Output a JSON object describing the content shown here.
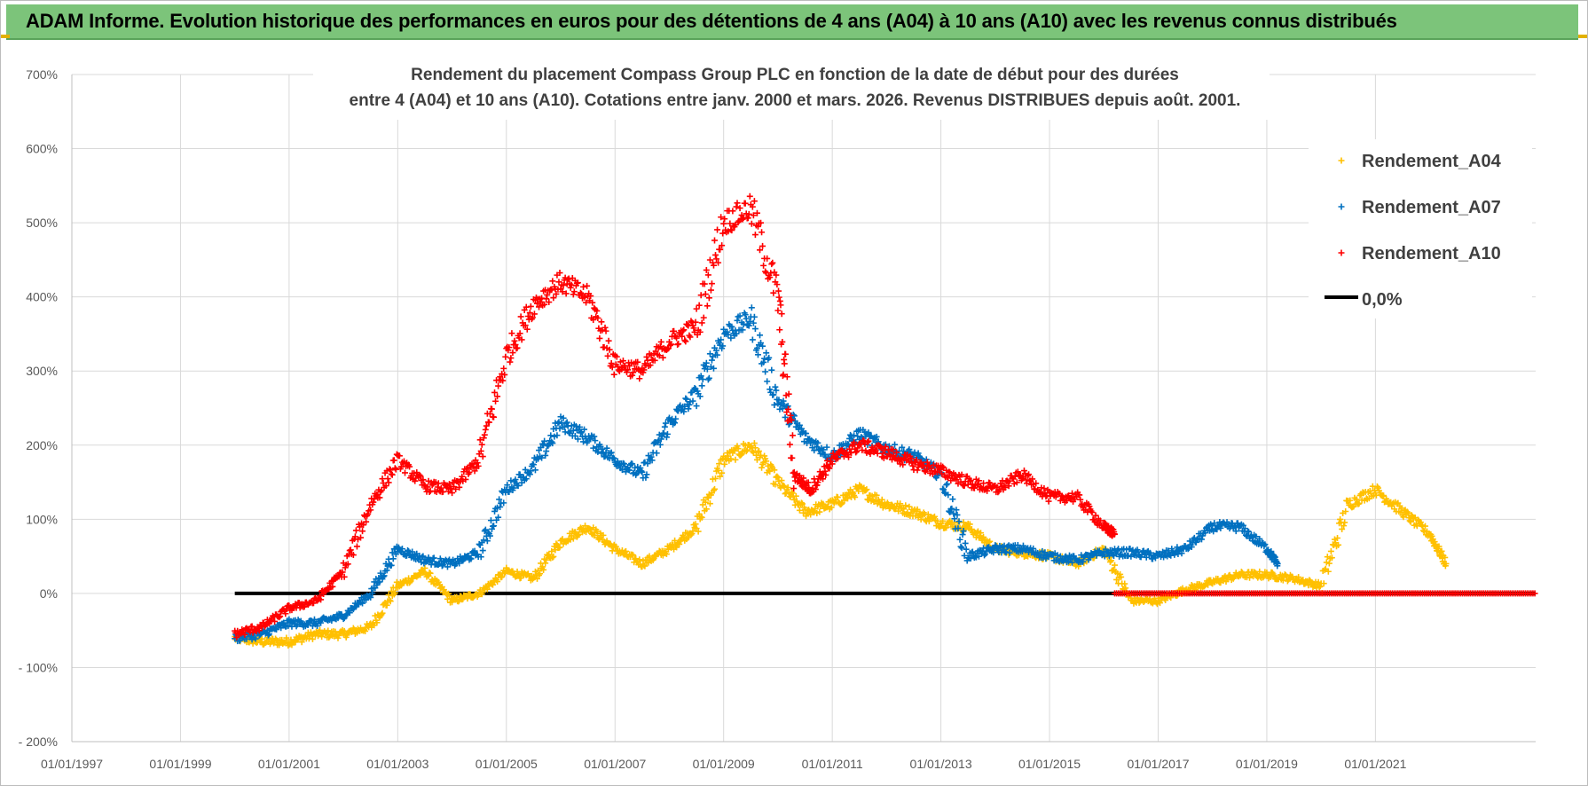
{
  "banner": {
    "title": "ADAM Informe. Evolution historique des performances en euros pour des détentions de 4 ans (A04) à 10 ans (A10) avec les revenus connus distribués"
  },
  "colors": {
    "banner_bg": "#7cc47a",
    "a04": "#ffc000",
    "a07": "#0070c0",
    "a10": "#ff0000",
    "zero": "#000000",
    "grid": "#d9d9d9"
  },
  "chart_data": {
    "type": "scatter",
    "title_lines": [
      "Rendement du placement Compass Group PLC en fonction de la date de début pour des durées",
      "entre 4 (A04) et 10 ans (A10). Cotations entre janv. 2000 et mars. 2026. Revenus DISTRIBUES depuis août. 2001."
    ],
    "xlabel": "",
    "ylabel": "",
    "x_range": [
      1997.0,
      2023.95
    ],
    "ylim": [
      -200,
      700
    ],
    "y_ticks": [
      700,
      600,
      500,
      400,
      300,
      200,
      100,
      0,
      -100,
      -200
    ],
    "y_tick_labels": [
      "700%",
      "600%",
      "500%",
      "400%",
      "300%",
      "200%",
      "100%",
      "0%",
      "- 100%",
      "- 200%"
    ],
    "x_ticks": [
      1997,
      1999,
      2001,
      2003,
      2005,
      2007,
      2009,
      2011,
      2013,
      2015,
      2017,
      2019,
      2021
    ],
    "x_tick_labels": [
      "01/01/1997",
      "01/01/1999",
      "01/01/2001",
      "01/01/2003",
      "01/01/2005",
      "01/01/2007",
      "01/01/2009",
      "01/01/2011",
      "01/01/2013",
      "01/01/2015",
      "01/01/2017",
      "01/01/2019",
      "01/01/2021"
    ],
    "legend_position": "top-right",
    "series": [
      {
        "name": "Rendement_A04",
        "color": "#ffc000",
        "x": [
          2000.0,
          2000.5,
          2001.0,
          2001.5,
          2002.0,
          2002.5,
          2003.0,
          2003.5,
          2004.0,
          2004.5,
          2005.0,
          2005.5,
          2006.0,
          2006.5,
          2007.0,
          2007.5,
          2008.0,
          2008.5,
          2009.0,
          2009.5,
          2010.0,
          2010.5,
          2011.0,
          2011.5,
          2012.0,
          2012.5,
          2013.0,
          2013.5,
          2014.0,
          2014.5,
          2015.0,
          2015.5,
          2016.0,
          2016.5,
          2017.0,
          2017.5,
          2018.0,
          2018.5,
          2019.0,
          2019.5,
          2020.0,
          2020.5,
          2021.0,
          2021.5,
          2022.0,
          2022.3
        ],
        "y": [
          -60,
          -65,
          -65,
          -55,
          -55,
          -45,
          10,
          30,
          -10,
          0,
          30,
          20,
          70,
          90,
          60,
          40,
          60,
          90,
          180,
          200,
          150,
          110,
          120,
          140,
          120,
          110,
          95,
          90,
          60,
          55,
          50,
          40,
          60,
          -10,
          -10,
          5,
          15,
          25,
          25,
          20,
          10,
          120,
          140,
          110,
          80,
          40
        ]
      },
      {
        "name": "Rendement_A07",
        "color": "#0070c0",
        "x": [
          2000.0,
          2000.5,
          2001.0,
          2001.5,
          2002.0,
          2002.5,
          2003.0,
          2003.5,
          2004.0,
          2004.5,
          2005.0,
          2005.5,
          2006.0,
          2006.5,
          2007.0,
          2007.5,
          2008.0,
          2008.5,
          2009.0,
          2009.5,
          2010.0,
          2010.5,
          2011.0,
          2011.5,
          2012.0,
          2012.5,
          2013.0,
          2013.5,
          2014.0,
          2014.5,
          2015.0,
          2015.5,
          2016.0,
          2016.5,
          2017.0,
          2017.5,
          2018.0,
          2018.5,
          2019.0,
          2019.2
        ],
        "y": [
          -60,
          -55,
          -40,
          -40,
          -30,
          0,
          60,
          45,
          40,
          55,
          140,
          170,
          230,
          210,
          180,
          160,
          230,
          270,
          350,
          370,
          260,
          210,
          185,
          215,
          195,
          185,
          160,
          50,
          60,
          60,
          50,
          45,
          55,
          55,
          50,
          60,
          90,
          90,
          60,
          40
        ]
      },
      {
        "name": "Rendement_A10",
        "color": "#ff0000",
        "x": [
          2000.0,
          2000.5,
          2001.0,
          2001.5,
          2002.0,
          2002.5,
          2003.0,
          2003.5,
          2004.0,
          2004.5,
          2005.0,
          2005.5,
          2006.0,
          2006.5,
          2007.0,
          2007.5,
          2008.0,
          2008.5,
          2009.0,
          2009.5,
          2010.0,
          2010.3,
          2010.6,
          2011.0,
          2011.5,
          2012.0,
          2012.5,
          2013.0,
          2013.5,
          2014.0,
          2014.5,
          2015.0,
          2015.5,
          2016.0,
          2016.2
        ],
        "y": [
          -55,
          -45,
          -20,
          -10,
          30,
          120,
          180,
          145,
          140,
          180,
          320,
          390,
          420,
          400,
          310,
          300,
          340,
          360,
          500,
          520,
          400,
          160,
          140,
          180,
          200,
          190,
          175,
          165,
          150,
          140,
          160,
          130,
          130,
          90,
          80
        ]
      }
    ],
    "zero_line": {
      "name": "0,0%",
      "x_start": 2000.0,
      "x_end": 2023.95,
      "y": 0
    },
    "zero_markers": {
      "series": "Rendement_A10",
      "x_start": 2016.2,
      "x_end": 2023.95,
      "y": 0
    }
  }
}
